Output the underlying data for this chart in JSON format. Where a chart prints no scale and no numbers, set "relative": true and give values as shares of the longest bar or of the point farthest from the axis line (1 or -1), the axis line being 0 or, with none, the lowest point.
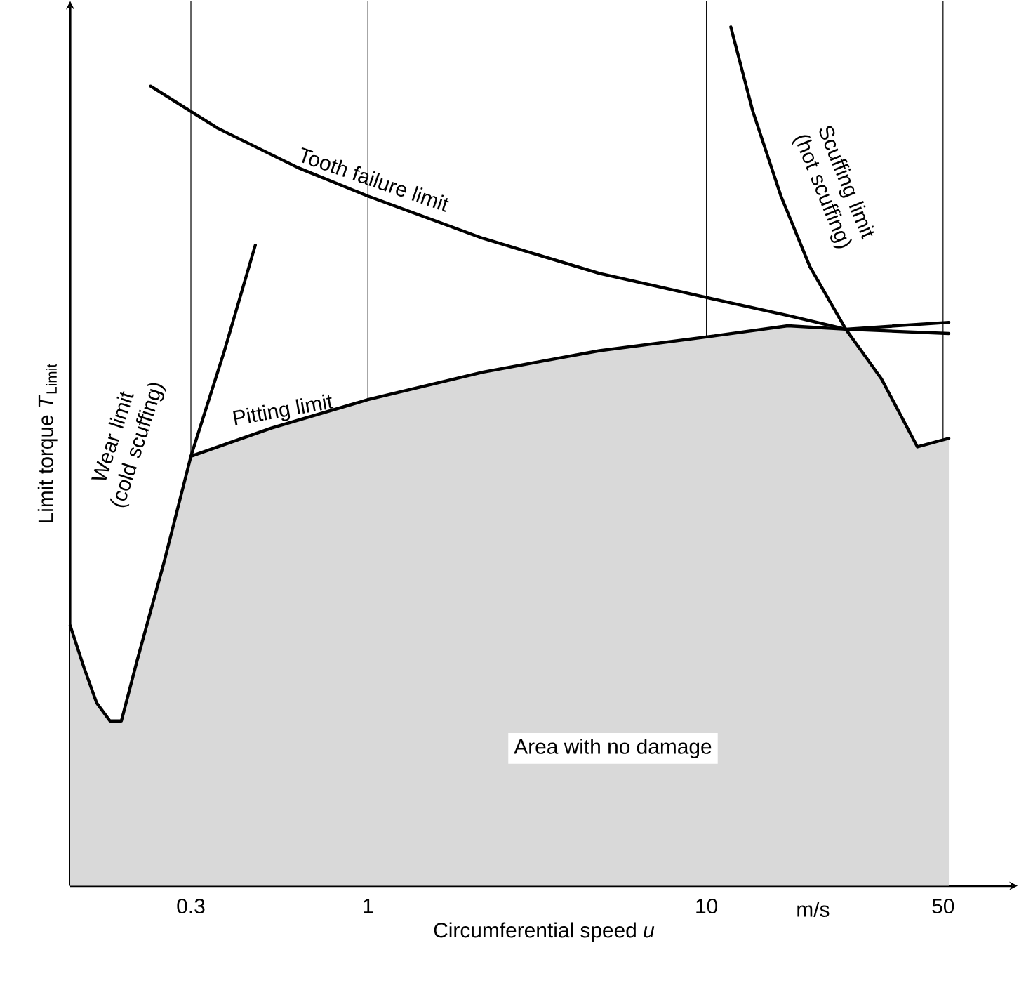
{
  "chart_data": {
    "type": "line",
    "relative": true,
    "log": "x",
    "xlabel": "Circumferential speed *u*",
    "ylabel": "Limit torque *T*$_{Limit}$",
    "xlim": [
      0.132,
      83
    ],
    "xticks": [
      0.3,
      1,
      10,
      50
    ],
    "grid": "x",
    "annotations": [
      "m/s"
    ],
    "series": [
      {
        "type": "area",
        "name": "Area with no damage",
        "color": "#d9d9d9",
        "x": [
          0.132,
          0.145,
          0.158,
          0.173,
          0.187,
          0.208,
          0.25,
          0.3,
          0.519,
          1,
          2.18,
          4.83,
          10,
          17.4,
          25.8,
          32.9,
          42.0,
          52
        ],
        "values": [
          0.303,
          0.254,
          0.213,
          0.192,
          0.192,
          0.262,
          0.377,
          0.5,
          0.533,
          0.566,
          0.598,
          0.623,
          0.639,
          0.652,
          0.648,
          0.59,
          0.511,
          0.521
        ]
      },
      {
        "name": "Wear limit (cold scuffing)",
        "color": "#000000",
        "x": [
          0.132,
          0.145,
          0.158,
          0.173,
          0.187,
          0.208,
          0.25,
          0.3,
          0.377,
          0.465
        ],
        "values": [
          0.303,
          0.254,
          0.213,
          0.192,
          0.192,
          0.262,
          0.377,
          0.5,
          0.623,
          0.746
        ]
      },
      {
        "name": "Pitting limit",
        "color": "#000000",
        "x": [
          0.3,
          0.519,
          1,
          2.18,
          4.83,
          10,
          17.4,
          25.8,
          52
        ],
        "values": [
          0.5,
          0.533,
          0.566,
          0.598,
          0.623,
          0.639,
          0.652,
          0.648,
          0.656
        ]
      },
      {
        "name": "Tooth failure limit",
        "color": "#000000",
        "x": [
          0.228,
          0.36,
          0.622,
          1,
          2.18,
          4.83,
          10,
          17.4,
          25.8,
          52
        ],
        "values": [
          0.931,
          0.882,
          0.836,
          0.803,
          0.754,
          0.713,
          0.685,
          0.664,
          0.648,
          0.643
        ]
      },
      {
        "name": "Scuffing limit (hot scuffing)",
        "color": "#000000",
        "x": [
          11.8,
          13.7,
          16.6,
          20.2,
          25.8,
          32.9,
          42.0,
          52
        ],
        "values": [
          1.0,
          0.902,
          0.803,
          0.721,
          0.648,
          0.59,
          0.511,
          0.521
        ]
      }
    ]
  }
}
